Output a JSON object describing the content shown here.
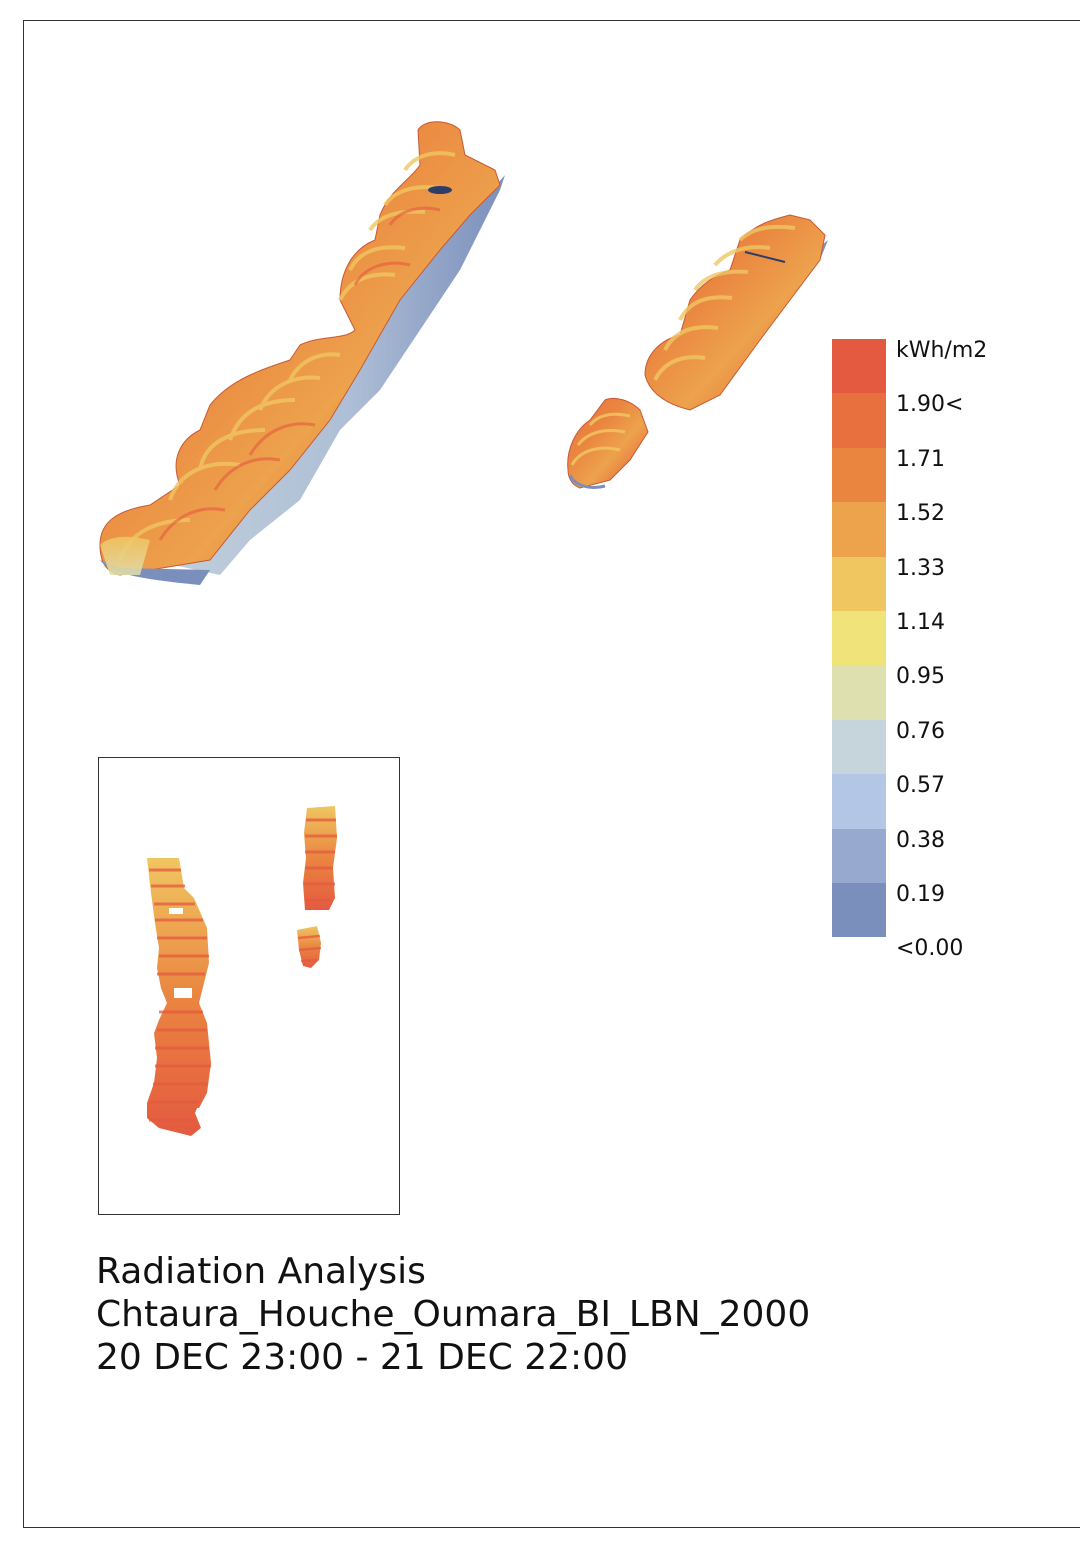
{
  "legend": {
    "unit": "kWh/m2",
    "colors": [
      "#e45a40",
      "#e8703e",
      "#ea8540",
      "#eda24c",
      "#f0c661",
      "#f0e37a",
      "#dfe0b0",
      "#c6d4dc",
      "#b3c6e6",
      "#98a9d0",
      "#7b8fbc"
    ],
    "labels": [
      "1.90<",
      "1.71",
      "1.52",
      "1.33",
      "1.14",
      "0.95",
      "0.76",
      "0.57",
      "0.38",
      "0.19",
      "<0.00"
    ]
  },
  "caption": {
    "line1": "Radiation Analysis",
    "line2": "Chtaura_Houche_Oumara_BI_LBN_2000",
    "line3": "20 DEC 23:00 - 21 DEC 22:00"
  }
}
